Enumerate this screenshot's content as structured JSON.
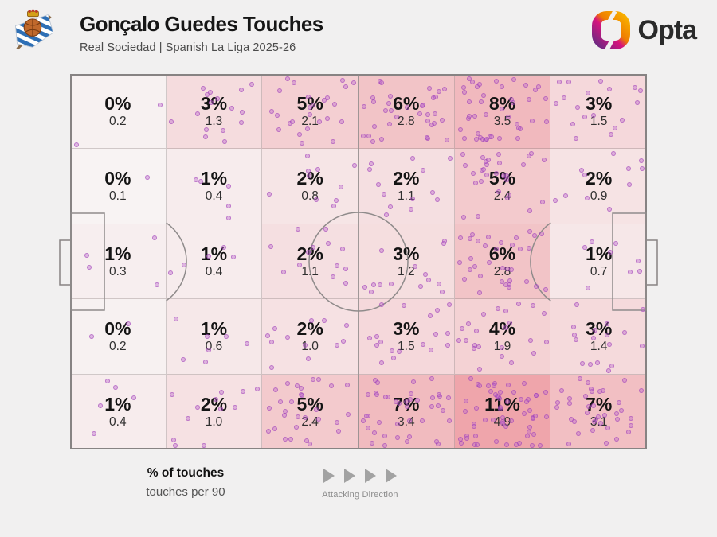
{
  "header": {
    "title": "Gonçalo Guedes Touches",
    "subtitle": "Real Sociedad | Spanish La Liga 2025-26",
    "club_badge": "real-sociedad-crest",
    "brand": "Opta"
  },
  "legend": {
    "primary": "% of touches",
    "secondary": "touches per 90",
    "direction_label": "Attacking Direction",
    "direction_arrow_count": 4
  },
  "colors": {
    "background": "#f1f0f0",
    "pitch_line": "#878383",
    "heat_min": "#f8f6f6",
    "heat_max": "#efa5ab",
    "dot_fill": "#b864cd",
    "dot_stroke": "#9c3cb4",
    "pct_text": "#141414",
    "per90_text": "#303030",
    "arrow_gray": "#a2a2a2",
    "opta_purple": "#6d2a82",
    "opta_magenta": "#d6137e",
    "opta_orange": "#ef7c00",
    "opta_amber": "#f8b100"
  },
  "chart_data": {
    "type": "heatmap",
    "title": "Gonçalo Guedes Touches",
    "subtitle": "Real Sociedad | Spanish La Liga 2025-26",
    "value_label": "% of touches",
    "secondary_label": "touches per 90",
    "layout": "football pitch split into 6 columns x 5 rows, attacking left to right",
    "rows": 5,
    "cols": 6,
    "pct": [
      [
        "0%",
        "3%",
        "5%",
        "6%",
        "8%",
        "3%"
      ],
      [
        "0%",
        "1%",
        "2%",
        "2%",
        "5%",
        "2%"
      ],
      [
        "1%",
        "1%",
        "2%",
        "3%",
        "6%",
        "1%"
      ],
      [
        "0%",
        "1%",
        "2%",
        "3%",
        "4%",
        "3%"
      ],
      [
        "1%",
        "2%",
        "5%",
        "7%",
        "11%",
        "7%"
      ]
    ],
    "per90": [
      [
        0.2,
        1.3,
        2.1,
        2.8,
        3.5,
        1.5
      ],
      [
        0.1,
        0.4,
        0.8,
        1.1,
        2.4,
        0.9
      ],
      [
        0.3,
        0.4,
        1.1,
        1.2,
        2.8,
        0.7
      ],
      [
        0.2,
        0.6,
        1.0,
        1.5,
        1.9,
        1.4
      ],
      [
        0.4,
        1.0,
        2.4,
        3.4,
        4.9,
        3.1
      ]
    ],
    "per90_max": 4.9
  }
}
